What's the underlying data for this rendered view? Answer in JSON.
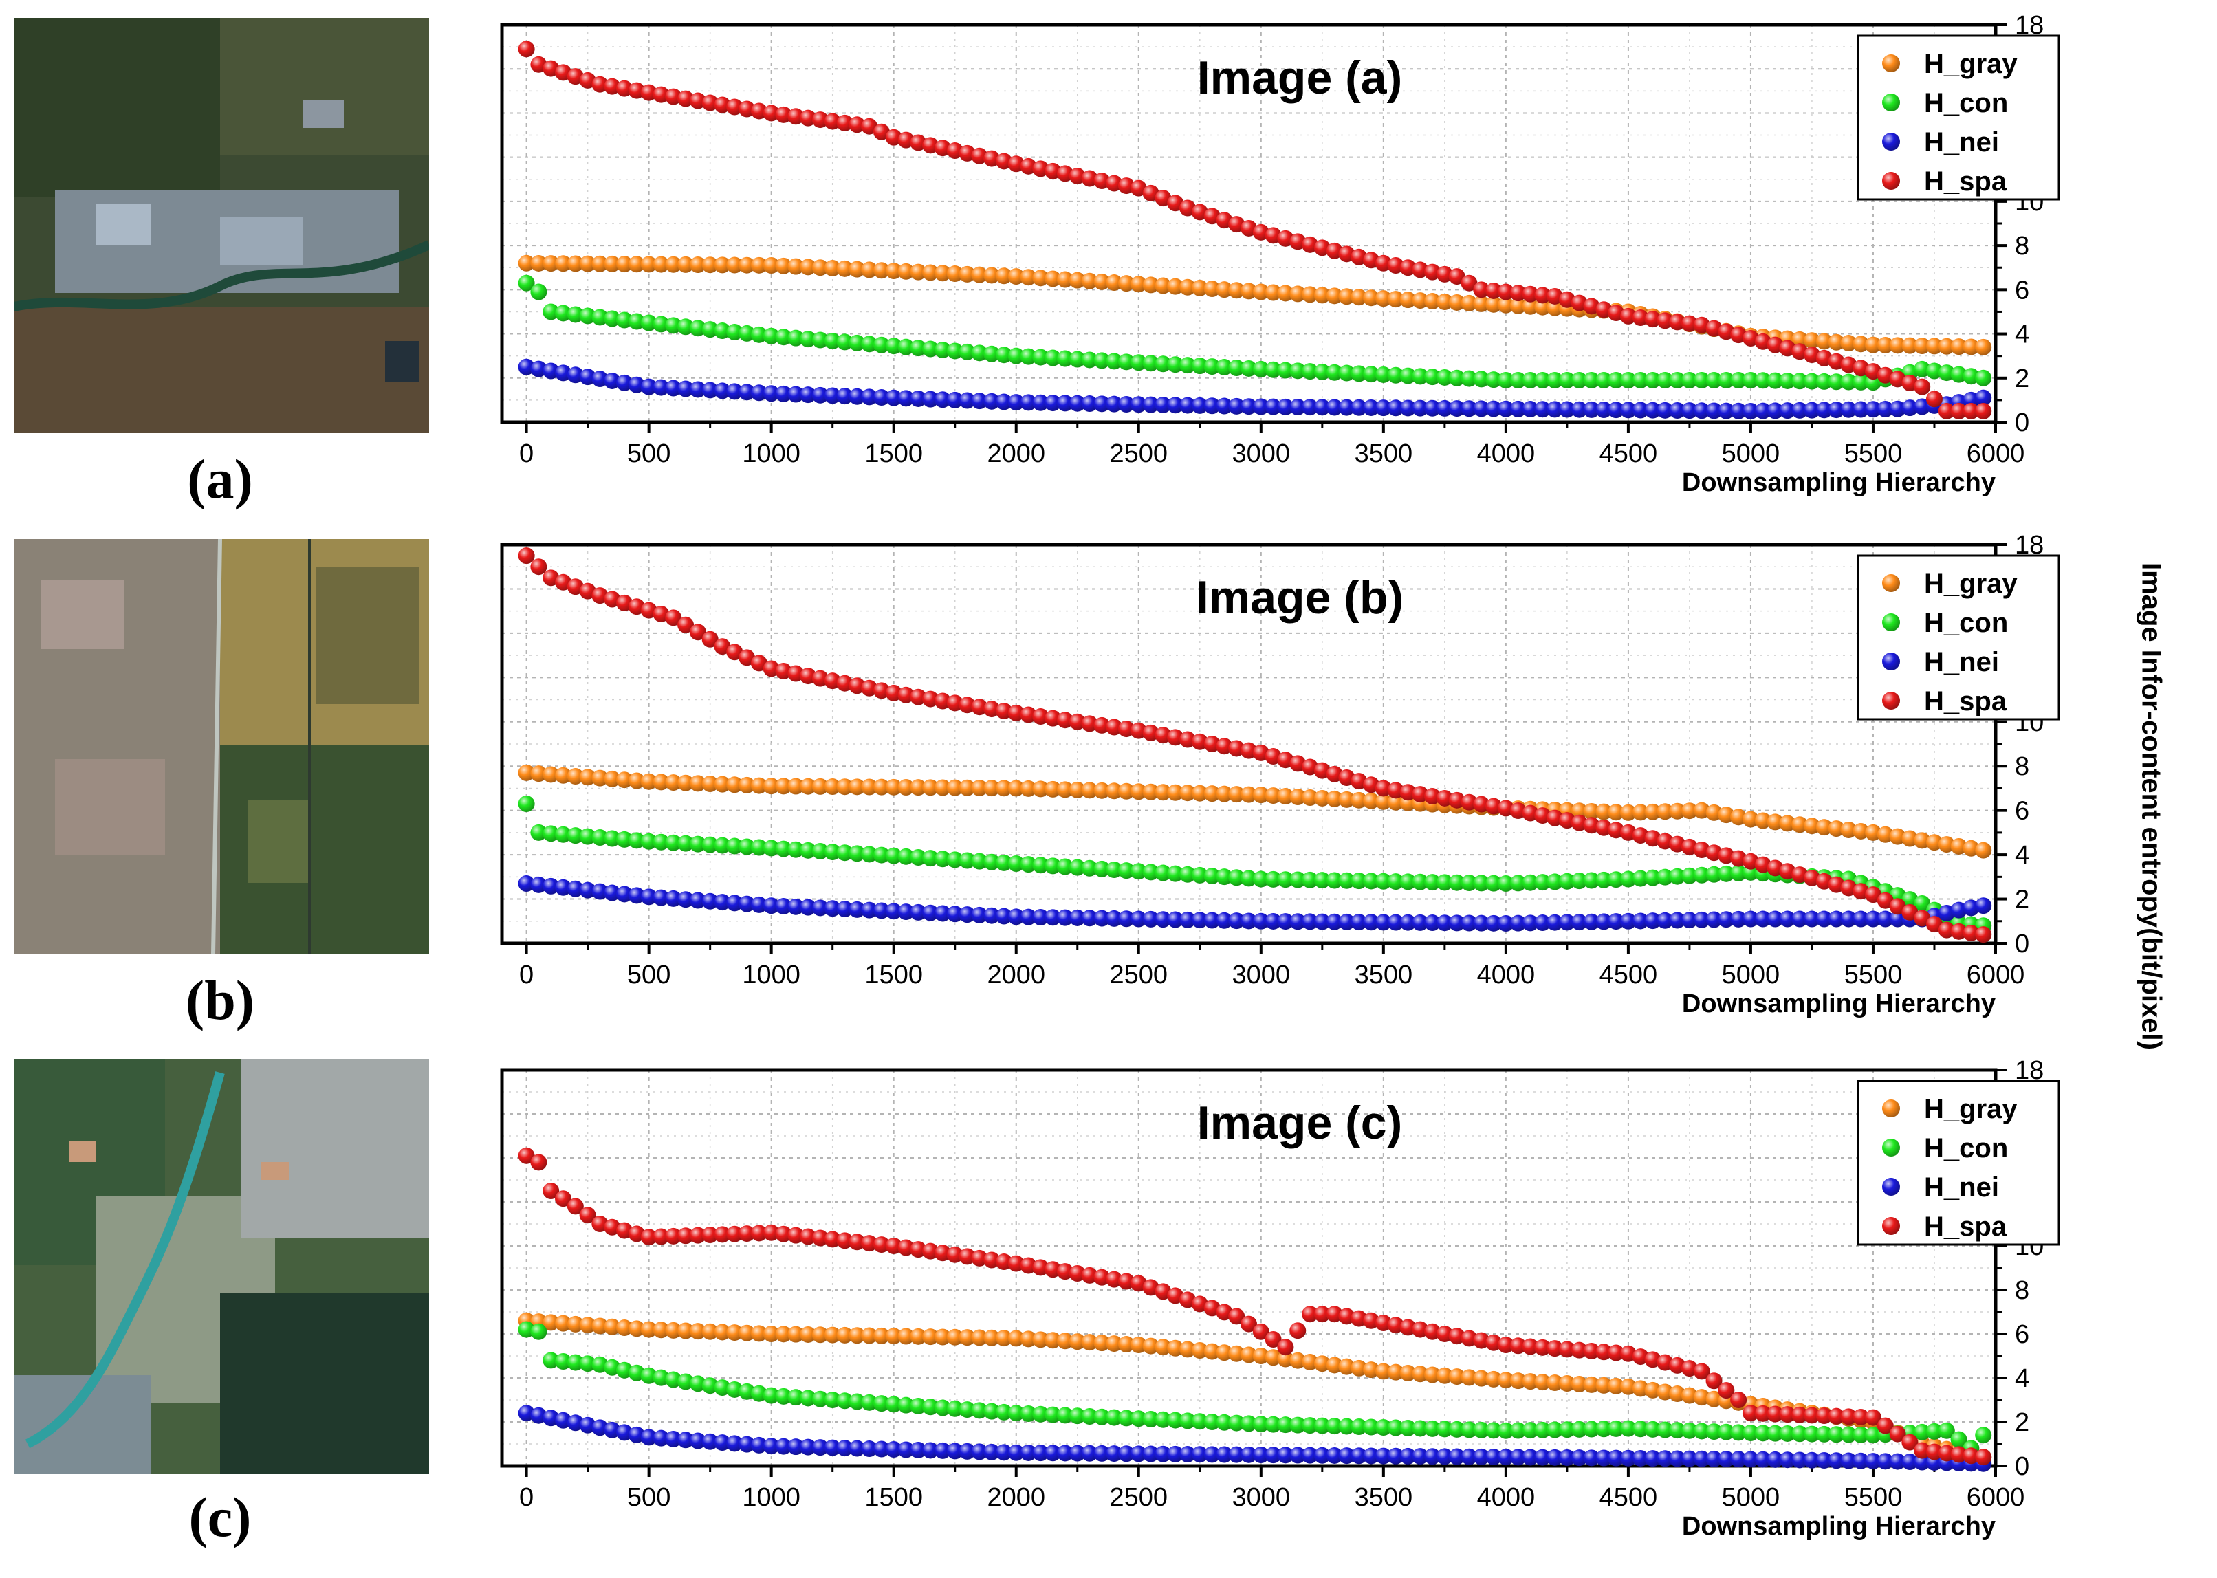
{
  "y_axis_title": "Image Infor-content entropy(bit/pixel)",
  "colors": {
    "H_gray": "#ff8c1a",
    "H_con": "#1fe81f",
    "H_nei": "#1a1adb",
    "H_spa": "#e81a1a"
  },
  "thumbnails": [
    {
      "caption": "(a)"
    },
    {
      "caption": "(b)"
    },
    {
      "caption": "(c)"
    }
  ],
  "chart_data": [
    {
      "type": "scatter",
      "title": "Image (a)",
      "xlabel": "Downsampling Hierarchy",
      "ylabel": "Image Infor-content entropy(bit/pixel)",
      "xlim": [
        -100,
        6000
      ],
      "ylim": [
        0,
        18
      ],
      "xticks": [
        0,
        500,
        1000,
        1500,
        2000,
        2500,
        3000,
        3500,
        4000,
        4500,
        5000,
        5500,
        6000
      ],
      "yticks": [
        0,
        2,
        4,
        6,
        8,
        10,
        12,
        14,
        16,
        18
      ],
      "grid": true,
      "legend_position": "top-right",
      "series": [
        {
          "name": "H_gray",
          "anchors": [
            [
              0,
              7.2
            ],
            [
              1000,
              7.1
            ],
            [
              2000,
              6.6
            ],
            [
              3000,
              5.9
            ],
            [
              4000,
              5.3
            ],
            [
              4500,
              5.0
            ],
            [
              5000,
              3.9
            ],
            [
              5500,
              3.5
            ],
            [
              5950,
              3.4
            ]
          ]
        },
        {
          "name": "H_con",
          "anchors": [
            [
              0,
              6.3
            ],
            [
              50,
              5.9
            ],
            [
              100,
              5.0
            ],
            [
              500,
              4.5
            ],
            [
              1000,
              3.9
            ],
            [
              2000,
              3.0
            ],
            [
              3000,
              2.4
            ],
            [
              4000,
              1.9
            ],
            [
              5000,
              1.9
            ],
            [
              5500,
              1.8
            ],
            [
              5700,
              2.4
            ],
            [
              5950,
              2.0
            ]
          ]
        },
        {
          "name": "H_nei",
          "anchors": [
            [
              0,
              2.5
            ],
            [
              500,
              1.6
            ],
            [
              1000,
              1.3
            ],
            [
              2000,
              0.9
            ],
            [
              3000,
              0.7
            ],
            [
              4000,
              0.6
            ],
            [
              5000,
              0.5
            ],
            [
              5600,
              0.6
            ],
            [
              5800,
              0.8
            ],
            [
              5950,
              1.1
            ]
          ]
        },
        {
          "name": "H_spa",
          "anchors": [
            [
              0,
              16.9
            ],
            [
              50,
              16.2
            ],
            [
              300,
              15.3
            ],
            [
              1000,
              14.0
            ],
            [
              1400,
              13.4
            ],
            [
              1500,
              12.9
            ],
            [
              2000,
              11.7
            ],
            [
              2500,
              10.6
            ],
            [
              2700,
              9.7
            ],
            [
              3000,
              8.6
            ],
            [
              3500,
              7.2
            ],
            [
              3800,
              6.6
            ],
            [
              3900,
              6.0
            ],
            [
              4200,
              5.7
            ],
            [
              4500,
              4.8
            ],
            [
              4800,
              4.4
            ],
            [
              5000,
              3.8
            ],
            [
              5500,
              2.3
            ],
            [
              5700,
              1.6
            ],
            [
              5800,
              0.5
            ],
            [
              5950,
              0.5
            ]
          ]
        }
      ]
    },
    {
      "type": "scatter",
      "title": "Image (b)",
      "xlabel": "Downsampling Hierarchy",
      "ylabel": "Image Infor-content entropy(bit/pixel)",
      "xlim": [
        -100,
        6000
      ],
      "ylim": [
        0,
        18
      ],
      "xticks": [
        0,
        500,
        1000,
        1500,
        2000,
        2500,
        3000,
        3500,
        4000,
        4500,
        5000,
        5500,
        6000
      ],
      "yticks": [
        0,
        2,
        4,
        6,
        8,
        10,
        12,
        14,
        16,
        18
      ],
      "grid": true,
      "legend_position": "top-right",
      "series": [
        {
          "name": "H_gray",
          "anchors": [
            [
              0,
              7.7
            ],
            [
              500,
              7.3
            ],
            [
              1000,
              7.1
            ],
            [
              2000,
              7.0
            ],
            [
              3000,
              6.7
            ],
            [
              4000,
              6.1
            ],
            [
              4500,
              5.9
            ],
            [
              4800,
              6.0
            ],
            [
              5000,
              5.6
            ],
            [
              5500,
              5.0
            ],
            [
              5950,
              4.2
            ]
          ]
        },
        {
          "name": "H_con",
          "anchors": [
            [
              0,
              6.3
            ],
            [
              50,
              5.0
            ],
            [
              500,
              4.6
            ],
            [
              1000,
              4.3
            ],
            [
              2000,
              3.6
            ],
            [
              3000,
              2.9
            ],
            [
              4000,
              2.7
            ],
            [
              4500,
              2.9
            ],
            [
              5000,
              3.2
            ],
            [
              5400,
              2.9
            ],
            [
              5700,
              1.8
            ],
            [
              5850,
              0.9
            ],
            [
              5950,
              0.8
            ]
          ]
        },
        {
          "name": "H_nei",
          "anchors": [
            [
              0,
              2.7
            ],
            [
              500,
              2.1
            ],
            [
              1000,
              1.7
            ],
            [
              2000,
              1.2
            ],
            [
              3000,
              1.0
            ],
            [
              4000,
              0.9
            ],
            [
              5000,
              1.1
            ],
            [
              5700,
              1.1
            ],
            [
              5850,
              1.5
            ],
            [
              5950,
              1.7
            ]
          ]
        },
        {
          "name": "H_spa",
          "anchors": [
            [
              0,
              17.5
            ],
            [
              100,
              16.5
            ],
            [
              300,
              15.7
            ],
            [
              600,
              14.7
            ],
            [
              800,
              13.4
            ],
            [
              1000,
              12.4
            ],
            [
              1500,
              11.3
            ],
            [
              2000,
              10.4
            ],
            [
              2500,
              9.6
            ],
            [
              3000,
              8.6
            ],
            [
              3500,
              7.0
            ],
            [
              4000,
              6.1
            ],
            [
              4500,
              5.0
            ],
            [
              5000,
              3.7
            ],
            [
              5500,
              2.2
            ],
            [
              5800,
              0.6
            ],
            [
              5950,
              0.4
            ]
          ]
        }
      ]
    },
    {
      "type": "scatter",
      "title": "Image (c)",
      "xlabel": "Downsampling Hierarchy",
      "ylabel": "Image Infor-content entropy(bit/pixel)",
      "xlim": [
        -100,
        6000
      ],
      "ylim": [
        0,
        18
      ],
      "xticks": [
        0,
        500,
        1000,
        1500,
        2000,
        2500,
        3000,
        3500,
        4000,
        4500,
        5000,
        5500,
        6000
      ],
      "yticks": [
        0,
        2,
        4,
        6,
        8,
        10,
        12,
        14,
        16,
        18
      ],
      "grid": true,
      "legend_position": "top-right",
      "series": [
        {
          "name": "H_gray",
          "anchors": [
            [
              0,
              6.6
            ],
            [
              500,
              6.2
            ],
            [
              1000,
              6.0
            ],
            [
              2000,
              5.8
            ],
            [
              2500,
              5.5
            ],
            [
              3000,
              5.0
            ],
            [
              3500,
              4.3
            ],
            [
              4000,
              3.9
            ],
            [
              4500,
              3.6
            ],
            [
              5000,
              2.8
            ],
            [
              5500,
              2.0
            ],
            [
              5700,
              1.0
            ],
            [
              5950,
              0.4
            ]
          ]
        },
        {
          "name": "H_con",
          "anchors": [
            [
              0,
              6.2
            ],
            [
              50,
              6.1
            ],
            [
              100,
              4.8
            ],
            [
              300,
              4.6
            ],
            [
              500,
              4.1
            ],
            [
              1000,
              3.2
            ],
            [
              2000,
              2.4
            ],
            [
              3000,
              1.9
            ],
            [
              4000,
              1.6
            ],
            [
              4500,
              1.7
            ],
            [
              5000,
              1.5
            ],
            [
              5500,
              1.4
            ],
            [
              5800,
              1.6
            ],
            [
              5900,
              0.8
            ],
            [
              5950,
              1.4
            ]
          ]
        },
        {
          "name": "H_nei",
          "anchors": [
            [
              0,
              2.4
            ],
            [
              500,
              1.3
            ],
            [
              1000,
              0.9
            ],
            [
              2000,
              0.6
            ],
            [
              3000,
              0.5
            ],
            [
              4000,
              0.4
            ],
            [
              5000,
              0.3
            ],
            [
              5600,
              0.2
            ],
            [
              5950,
              0.1
            ]
          ]
        },
        {
          "name": "H_spa",
          "anchors": [
            [
              0,
              14.1
            ],
            [
              50,
              13.8
            ],
            [
              100,
              12.5
            ],
            [
              200,
              11.8
            ],
            [
              300,
              11.0
            ],
            [
              500,
              10.4
            ],
            [
              1000,
              10.6
            ],
            [
              1500,
              10.0
            ],
            [
              2000,
              9.2
            ],
            [
              2500,
              8.3
            ],
            [
              2900,
              6.8
            ],
            [
              3000,
              6.1
            ],
            [
              3100,
              5.4
            ],
            [
              3200,
              6.9
            ],
            [
              3300,
              6.9
            ],
            [
              4000,
              5.5
            ],
            [
              4500,
              5.1
            ],
            [
              4800,
              4.3
            ],
            [
              4950,
              3.0
            ],
            [
              5000,
              2.4
            ],
            [
              5500,
              2.2
            ],
            [
              5700,
              0.7
            ],
            [
              5950,
              0.4
            ]
          ]
        }
      ]
    }
  ]
}
